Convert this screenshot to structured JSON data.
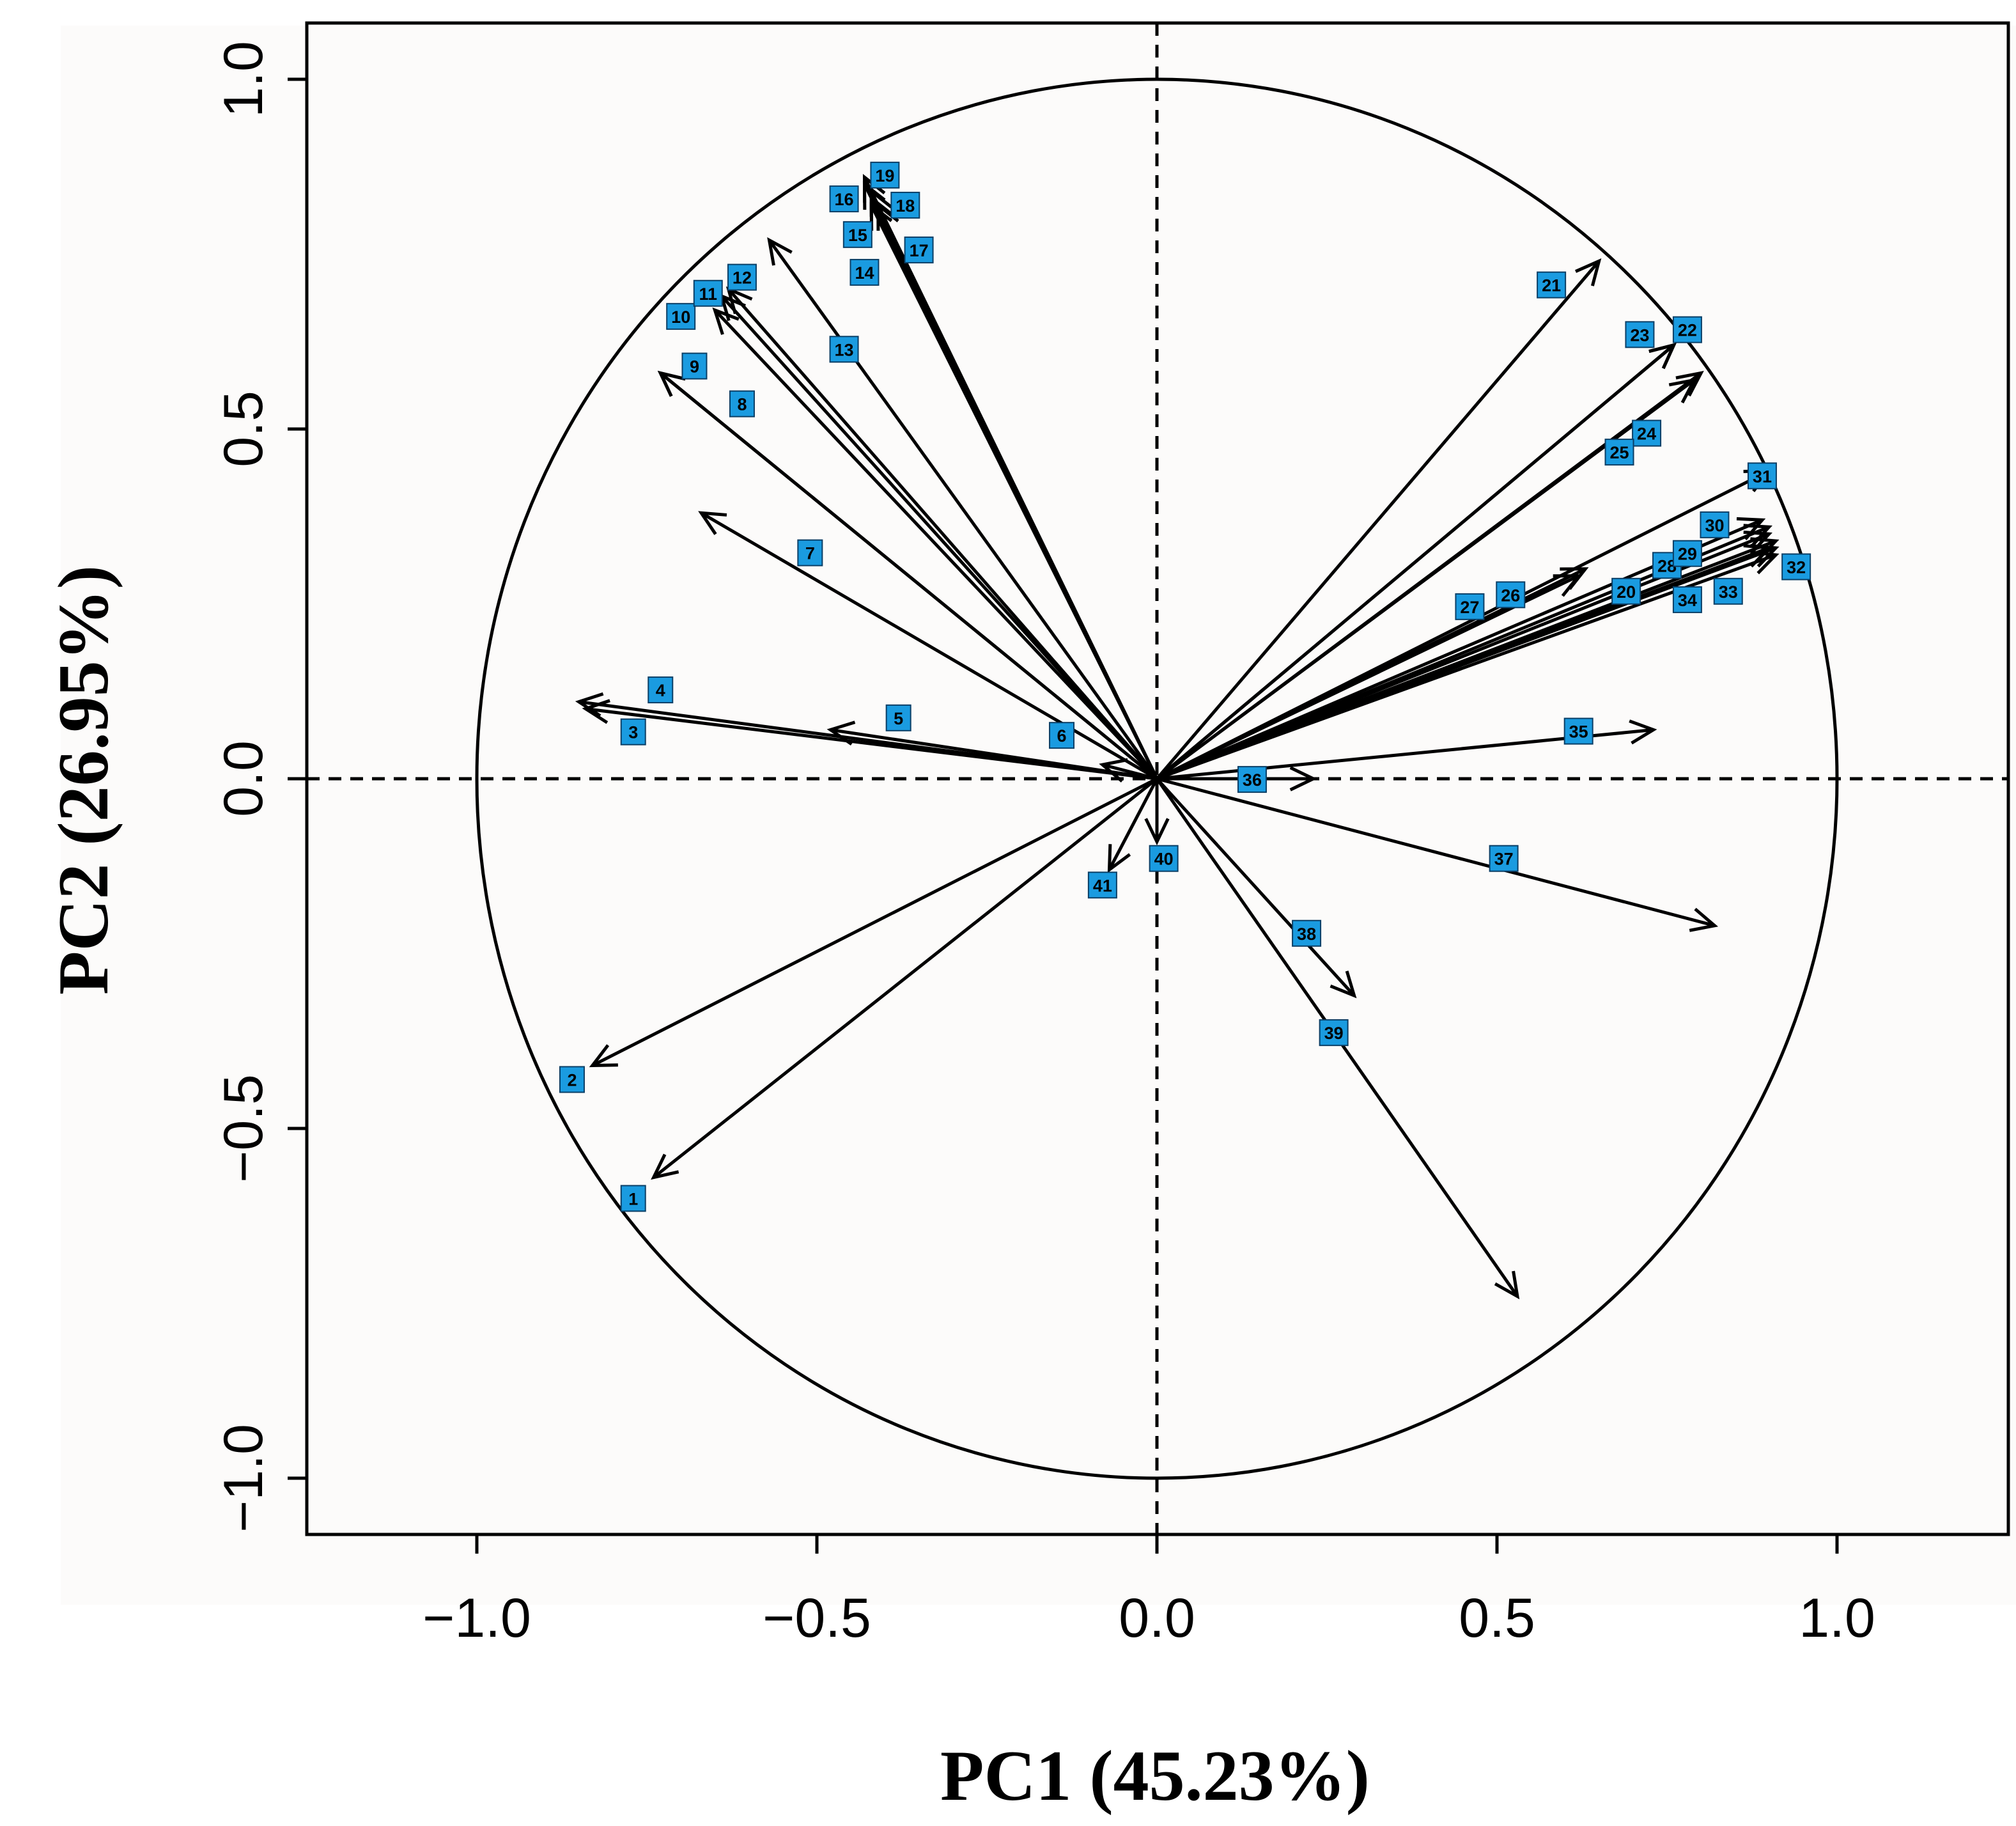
{
  "chart_data": {
    "type": "scatter",
    "subtype": "pca-correlation-circle",
    "title": "",
    "xlabel": "PC1 (45.23%)",
    "ylabel": "PC2 (26.95%)",
    "xlim": [
      -1.25,
      1.25
    ],
    "ylim": [
      -1.08,
      1.08
    ],
    "xticks": [
      -1.0,
      -0.5,
      0.0,
      0.5,
      1.0
    ],
    "yticks": [
      -1.0,
      -0.5,
      0.0,
      0.5,
      1.0
    ],
    "xtick_labels": [
      "−1.0",
      "−0.5",
      "0.0",
      "0.5",
      "1.0"
    ],
    "ytick_labels": [
      "−1.0",
      "−0.5",
      "0.0",
      "0.5",
      "1.0"
    ],
    "unit_circle": true,
    "reference_lines": {
      "x": 0,
      "y": 0,
      "style": "dashed"
    },
    "label_color": "#1a9be0",
    "arrow_color": "#000000",
    "variables": [
      {
        "label": "1",
        "x": -0.74,
        "y": -0.57,
        "lx": -0.77,
        "ly": -0.6
      },
      {
        "label": "2",
        "x": -0.83,
        "y": -0.41,
        "lx": -0.86,
        "ly": -0.43
      },
      {
        "label": "3",
        "x": -0.84,
        "y": 0.1,
        "lx": -0.77,
        "ly": 0.067
      },
      {
        "label": "4",
        "x": -0.85,
        "y": 0.11,
        "lx": -0.73,
        "ly": 0.127
      },
      {
        "label": "5",
        "x": -0.48,
        "y": 0.07,
        "lx": -0.38,
        "ly": 0.087
      },
      {
        "label": "6",
        "x": -0.08,
        "y": 0.02,
        "lx": -0.14,
        "ly": 0.062
      },
      {
        "label": "7",
        "x": -0.67,
        "y": 0.38,
        "lx": -0.51,
        "ly": 0.323
      },
      {
        "label": "8",
        "x": -0.73,
        "y": 0.58,
        "lx": -0.61,
        "ly": 0.536
      },
      {
        "label": "9",
        "x": -0.73,
        "y": 0.58,
        "lx": -0.68,
        "ly": 0.59
      },
      {
        "label": "10",
        "x": -0.65,
        "y": 0.67,
        "lx": -0.7,
        "ly": 0.661
      },
      {
        "label": "11",
        "x": -0.64,
        "y": 0.69,
        "lx": -0.66,
        "ly": 0.694
      },
      {
        "label": "12",
        "x": -0.63,
        "y": 0.7,
        "lx": -0.61,
        "ly": 0.717
      },
      {
        "label": "13",
        "x": -0.57,
        "y": 0.77,
        "lx": -0.46,
        "ly": 0.614
      },
      {
        "label": "14",
        "x": -0.42,
        "y": 0.82,
        "lx": -0.43,
        "ly": 0.724
      },
      {
        "label": "15",
        "x": -0.42,
        "y": 0.83,
        "lx": -0.44,
        "ly": 0.778
      },
      {
        "label": "16",
        "x": -0.43,
        "y": 0.85,
        "lx": -0.46,
        "ly": 0.829
      },
      {
        "label": "17",
        "x": -0.41,
        "y": 0.82,
        "lx": -0.35,
        "ly": 0.756
      },
      {
        "label": "18",
        "x": -0.42,
        "y": 0.84,
        "lx": -0.37,
        "ly": 0.82
      },
      {
        "label": "19",
        "x": -0.43,
        "y": 0.86,
        "lx": -0.4,
        "ly": 0.863
      },
      {
        "label": "20",
        "x": 0.9,
        "y": 0.33,
        "lx": 0.69,
        "ly": 0.268
      },
      {
        "label": "21",
        "x": 0.65,
        "y": 0.74,
        "lx": 0.58,
        "ly": 0.706
      },
      {
        "label": "22",
        "x": 0.76,
        "y": 0.62,
        "lx": 0.78,
        "ly": 0.642
      },
      {
        "label": "23",
        "x": 0.76,
        "y": 0.62,
        "lx": 0.71,
        "ly": 0.635
      },
      {
        "label": "24",
        "x": 0.8,
        "y": 0.58,
        "lx": 0.72,
        "ly": 0.494
      },
      {
        "label": "25",
        "x": 0.79,
        "y": 0.57,
        "lx": 0.68,
        "ly": 0.467
      },
      {
        "label": "26",
        "x": 0.63,
        "y": 0.3,
        "lx": 0.52,
        "ly": 0.263
      },
      {
        "label": "27",
        "x": 0.62,
        "y": 0.29,
        "lx": 0.46,
        "ly": 0.246
      },
      {
        "label": "28",
        "x": 0.9,
        "y": 0.35,
        "lx": 0.75,
        "ly": 0.305
      },
      {
        "label": "29",
        "x": 0.9,
        "y": 0.36,
        "lx": 0.78,
        "ly": 0.322
      },
      {
        "label": "30",
        "x": 0.89,
        "y": 0.37,
        "lx": 0.82,
        "ly": 0.363
      },
      {
        "label": "31",
        "x": 0.9,
        "y": 0.44,
        "lx": 0.89,
        "ly": 0.433
      },
      {
        "label": "32",
        "x": 0.91,
        "y": 0.32,
        "lx": 0.94,
        "ly": 0.303
      },
      {
        "label": "33",
        "x": 0.91,
        "y": 0.33,
        "lx": 0.84,
        "ly": 0.268
      },
      {
        "label": "34",
        "x": 0.91,
        "y": 0.34,
        "lx": 0.78,
        "ly": 0.256
      },
      {
        "label": "35",
        "x": 0.73,
        "y": 0.07,
        "lx": 0.62,
        "ly": 0.068
      },
      {
        "label": "36",
        "x": 0.23,
        "y": 0.0,
        "lx": 0.14,
        "ly": -0.001
      },
      {
        "label": "37",
        "x": 0.82,
        "y": -0.21,
        "lx": 0.51,
        "ly": -0.114
      },
      {
        "label": "38",
        "x": 0.29,
        "y": -0.31,
        "lx": 0.22,
        "ly": -0.221
      },
      {
        "label": "39",
        "x": 0.53,
        "y": -0.74,
        "lx": 0.26,
        "ly": -0.363
      },
      {
        "label": "40",
        "x": 0.0,
        "y": -0.09,
        "lx": 0.01,
        "ly": -0.114
      },
      {
        "label": "41",
        "x": -0.07,
        "y": -0.13,
        "lx": -0.08,
        "ly": -0.152
      }
    ]
  }
}
